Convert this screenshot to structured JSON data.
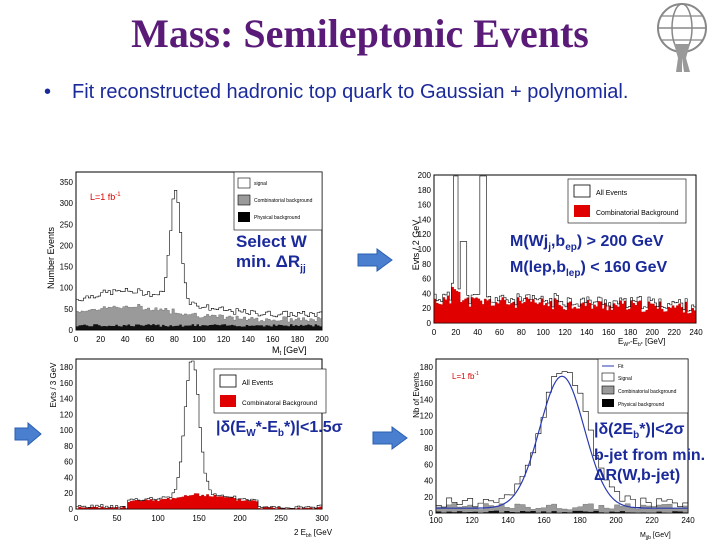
{
  "slide": {
    "title": "Mass: Semileptonic Events",
    "bullet": "Fit reconstructed hadronic top quark to Gaussian + polynomial."
  },
  "panels": {
    "tl": {
      "ylabel": "Number Events",
      "xlabel": "M",
      "xlabel_sub": "t",
      "xlabel_unit": " [GeV]",
      "lumi": "L=1 fb",
      "lumi_sup": "-1",
      "legend": [
        "signal",
        "Combinatorial background",
        "Physical background"
      ],
      "yticks": [
        "0",
        "50",
        "100",
        "150",
        "200",
        "250",
        "300",
        "350"
      ],
      "xticks": [
        "0",
        "20",
        "40",
        "60",
        "80",
        "100",
        "120",
        "140",
        "160",
        "180",
        "200"
      ],
      "annotation": {
        "line1": "Select W",
        "line2": "min. ΔR",
        "line2_sub": "jj"
      }
    },
    "tr": {
      "ylabel": "Evts / 2 GeV",
      "xlabel": "E",
      "xlabel_sub": "W*",
      "xlabel_mid": "-E",
      "xlabel_sub2": "b*",
      "xlabel_unit": " [GeV]",
      "legend": [
        "All Events",
        "Combinatorial Background"
      ],
      "yticks": [
        "0",
        "20",
        "40",
        "60",
        "80",
        "100",
        "120",
        "140",
        "160",
        "180",
        "200"
      ],
      "xticks": [
        "0",
        "20",
        "40",
        "60",
        "80",
        "100",
        "120",
        "140",
        "160",
        "180",
        "200",
        "220",
        "240"
      ],
      "annotation": {
        "l1a": "M(Wj",
        "l1s1": "j",
        "l1b": ",b",
        "l1s2": "ep",
        "l1c": ") > 200 GeV",
        "l2a": "M(lep,b",
        "l2s": "lep",
        "l2b": ") < 160 GeV"
      }
    },
    "bl": {
      "ylabel": "Evts / 3 GeV",
      "xlabel": "2 E",
      "xlabel_sub": "bh",
      "xlabel_unit": " [GeV]",
      "legend": [
        "All Events",
        "Combinatoral Background"
      ],
      "yticks": [
        "0",
        "20",
        "40",
        "60",
        "80",
        "100",
        "120",
        "140",
        "160",
        "180"
      ],
      "xticks": [
        "0",
        "50",
        "100",
        "150",
        "200",
        "250",
        "300"
      ],
      "annotation": {
        "a": "|δ(E",
        "s1": "W",
        "b": "*-E",
        "s2": "b",
        "c": "*)|<1.5σ"
      }
    },
    "br": {
      "ylabel": "Nb of Events",
      "xlabel": "M",
      "xlabel_sub": "jjb",
      "xlabel_unit": " [GeV]",
      "lumi": "L=1 fb",
      "lumi_sup": "-1",
      "legend": [
        "Fit",
        "Signal",
        "Combinatorial background",
        "Physical background"
      ],
      "yticks": [
        "0",
        "20",
        "40",
        "60",
        "80",
        "100",
        "120",
        "140",
        "160",
        "180"
      ],
      "xticks": [
        "100",
        "120",
        "140",
        "160",
        "180",
        "200",
        "220",
        "240"
      ],
      "annotation": {
        "a": "|δ(2E",
        "s1": "b",
        "b": "*)|<2σ",
        "l2": "b-jet from min.",
        "l3": "ΔR(W,b-jet)"
      }
    }
  },
  "colors": {
    "title": "#5a1a78",
    "bullet": "#1a2a9a",
    "arrow": "#4a7fd0",
    "combinatorial": "#e00000",
    "gray_bkg": "#9a9a9a",
    "fit": "#2a3ab0"
  },
  "icons": {
    "logo": "atlas-logo"
  }
}
